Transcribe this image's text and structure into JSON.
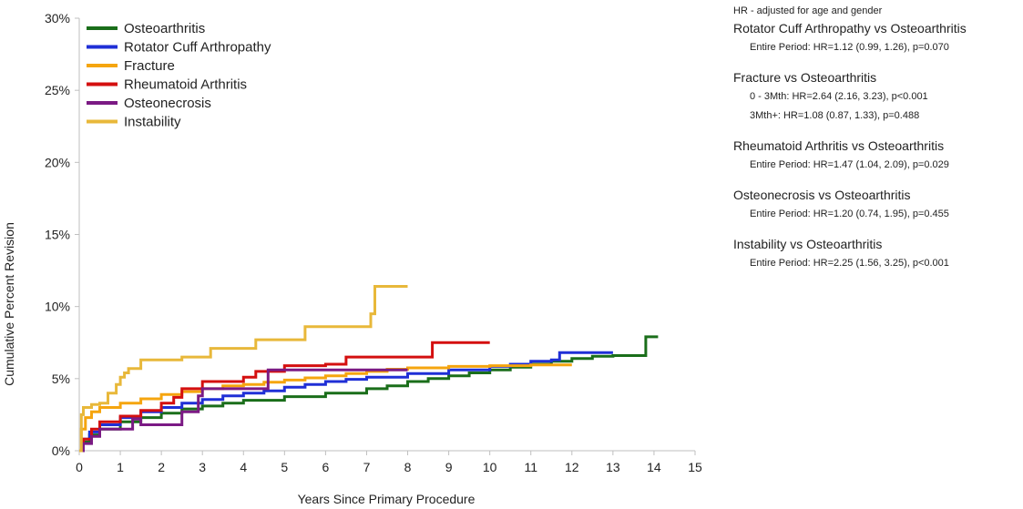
{
  "chart_data": {
    "type": "line",
    "xlabel": "Years Since Primary Procedure",
    "ylabel": "Cumulative Percent Revision",
    "xlim": [
      0,
      15
    ],
    "ylim": [
      0,
      30
    ],
    "x_ticks": [
      "0",
      "1",
      "2",
      "3",
      "4",
      "5",
      "6",
      "7",
      "8",
      "9",
      "10",
      "11",
      "12",
      "13",
      "14",
      "15"
    ],
    "y_ticks": [
      "0%",
      "5%",
      "10%",
      "15%",
      "20%",
      "25%",
      "30%"
    ],
    "legend_position": "top-left",
    "grid": false,
    "series": [
      {
        "name": "Osteoarthritis",
        "color": "#1a6e1a",
        "points": [
          [
            0,
            0
          ],
          [
            0.1,
            0.6
          ],
          [
            0.25,
            1.1
          ],
          [
            0.5,
            1.5
          ],
          [
            1,
            2.0
          ],
          [
            1.5,
            2.3
          ],
          [
            2,
            2.6
          ],
          [
            2.5,
            2.9
          ],
          [
            3,
            3.1
          ],
          [
            3.5,
            3.3
          ],
          [
            4,
            3.5
          ],
          [
            5,
            3.75
          ],
          [
            6,
            4.0
          ],
          [
            7,
            4.3
          ],
          [
            7.5,
            4.5
          ],
          [
            8,
            4.8
          ],
          [
            8.5,
            5.0
          ],
          [
            9,
            5.2
          ],
          [
            9.5,
            5.4
          ],
          [
            10,
            5.6
          ],
          [
            10.5,
            5.8
          ],
          [
            11,
            6.0
          ],
          [
            11.5,
            6.2
          ],
          [
            12,
            6.4
          ],
          [
            12.5,
            6.55
          ],
          [
            13,
            6.6
          ],
          [
            13.8,
            6.6
          ],
          [
            13.8,
            7.9
          ],
          [
            14.1,
            7.9
          ]
        ]
      },
      {
        "name": "Rotator Cuff Arthropathy",
        "color": "#1f2fd6",
        "points": [
          [
            0,
            0
          ],
          [
            0.1,
            0.8
          ],
          [
            0.25,
            1.3
          ],
          [
            0.5,
            1.8
          ],
          [
            1,
            2.3
          ],
          [
            1.5,
            2.7
          ],
          [
            2,
            3.0
          ],
          [
            2.5,
            3.3
          ],
          [
            3,
            3.55
          ],
          [
            3.5,
            3.8
          ],
          [
            4,
            4.0
          ],
          [
            4.5,
            4.15
          ],
          [
            5,
            4.4
          ],
          [
            5.5,
            4.6
          ],
          [
            6,
            4.8
          ],
          [
            6.5,
            4.95
          ],
          [
            7,
            5.1
          ],
          [
            8,
            5.35
          ],
          [
            9,
            5.6
          ],
          [
            10,
            5.85
          ],
          [
            10.5,
            6.0
          ],
          [
            11,
            6.2
          ],
          [
            11.5,
            6.3
          ],
          [
            11.7,
            6.8
          ],
          [
            13,
            6.8
          ]
        ]
      },
      {
        "name": "Fracture",
        "color": "#f5a50f",
        "points": [
          [
            0,
            0
          ],
          [
            0.05,
            1.5
          ],
          [
            0.15,
            2.3
          ],
          [
            0.3,
            2.7
          ],
          [
            0.5,
            3.0
          ],
          [
            1,
            3.3
          ],
          [
            1.5,
            3.6
          ],
          [
            2,
            3.9
          ],
          [
            2.5,
            4.1
          ],
          [
            3,
            4.3
          ],
          [
            3.5,
            4.5
          ],
          [
            4,
            4.6
          ],
          [
            4.5,
            4.75
          ],
          [
            5,
            4.9
          ],
          [
            5.5,
            5.05
          ],
          [
            6,
            5.2
          ],
          [
            6.5,
            5.35
          ],
          [
            7,
            5.5
          ],
          [
            7.5,
            5.65
          ],
          [
            8,
            5.75
          ],
          [
            9,
            5.85
          ],
          [
            10,
            5.9
          ],
          [
            11,
            5.95
          ],
          [
            12,
            5.95
          ]
        ]
      },
      {
        "name": "Rheumatoid Arthritis",
        "color": "#d40f0f",
        "points": [
          [
            0,
            0
          ],
          [
            0.1,
            0.8
          ],
          [
            0.3,
            1.5
          ],
          [
            0.5,
            2.0
          ],
          [
            1,
            2.4
          ],
          [
            1.5,
            2.8
          ],
          [
            2,
            3.3
          ],
          [
            2.3,
            3.7
          ],
          [
            2.5,
            4.3
          ],
          [
            3,
            4.8
          ],
          [
            3.5,
            4.8
          ],
          [
            4,
            5.1
          ],
          [
            4.3,
            5.5
          ],
          [
            5,
            5.9
          ],
          [
            6,
            6.0
          ],
          [
            6.5,
            6.5
          ],
          [
            8.6,
            6.5
          ],
          [
            8.6,
            7.5
          ],
          [
            10,
            7.5
          ]
        ]
      },
      {
        "name": "Osteonecrosis",
        "color": "#7b1a84",
        "points": [
          [
            0,
            0
          ],
          [
            0.1,
            0.5
          ],
          [
            0.3,
            1.0
          ],
          [
            0.5,
            1.5
          ],
          [
            1,
            1.5
          ],
          [
            1.3,
            2.2
          ],
          [
            1.5,
            2.2
          ],
          [
            1.5,
            1.8
          ],
          [
            2,
            1.8
          ],
          [
            2.5,
            2.7
          ],
          [
            2.9,
            3.8
          ],
          [
            3,
            4.3
          ],
          [
            4,
            4.3
          ],
          [
            4.6,
            5.6
          ],
          [
            8,
            5.6
          ]
        ]
      },
      {
        "name": "Instability",
        "color": "#e8b83a",
        "points": [
          [
            0,
            0
          ],
          [
            0.05,
            2.5
          ],
          [
            0.1,
            3.0
          ],
          [
            0.3,
            3.2
          ],
          [
            0.5,
            3.3
          ],
          [
            0.7,
            4.0
          ],
          [
            0.9,
            4.6
          ],
          [
            1,
            5.1
          ],
          [
            1.1,
            5.4
          ],
          [
            1.2,
            5.7
          ],
          [
            1.5,
            6.3
          ],
          [
            2.5,
            6.5
          ],
          [
            3.2,
            7.1
          ],
          [
            4.3,
            7.7
          ],
          [
            5.5,
            8.6
          ],
          [
            7,
            8.6
          ],
          [
            7.1,
            9.5
          ],
          [
            7.2,
            11.4
          ],
          [
            8,
            11.4
          ]
        ]
      }
    ]
  },
  "hr_panel": {
    "note": "HR - adjusted for age and gender",
    "groups": [
      {
        "title": "Rotator Cuff Arthropathy vs Osteoarthritis",
        "lines": [
          "Entire Period: HR=1.12 (0.99, 1.26), p=0.070"
        ]
      },
      {
        "title": "Fracture vs Osteoarthritis",
        "lines": [
          "0 - 3Mth: HR=2.64 (2.16, 3.23), p<0.001",
          "3Mth+: HR=1.08 (0.87, 1.33), p=0.488"
        ]
      },
      {
        "title": "Rheumatoid Arthritis vs Osteoarthritis",
        "lines": [
          "Entire Period: HR=1.47 (1.04, 2.09), p=0.029"
        ]
      },
      {
        "title": "Osteonecrosis vs Osteoarthritis",
        "lines": [
          "Entire Period: HR=1.20 (0.74, 1.95), p=0.455"
        ]
      },
      {
        "title": "Instability vs Osteoarthritis",
        "lines": [
          "Entire Period: HR=2.25 (1.56, 3.25), p<0.001"
        ]
      }
    ]
  }
}
